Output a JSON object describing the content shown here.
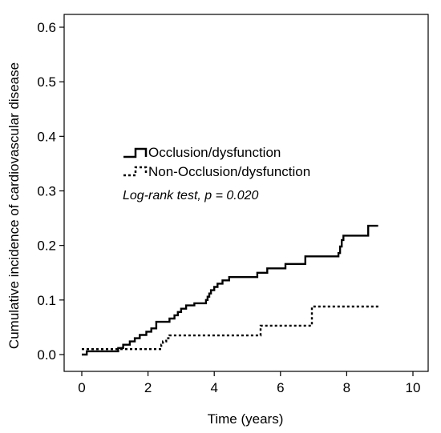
{
  "chart_data": {
    "type": "line",
    "step": true,
    "title": "",
    "xlabel": "Time (years)",
    "ylabel": "Cumulative incidence of cardiovascular disease",
    "xlim": [
      0,
      10
    ],
    "ylim": [
      0,
      0.6
    ],
    "xticks": [
      0,
      2,
      4,
      6,
      8,
      10
    ],
    "yticks": [
      0.0,
      0.1,
      0.2,
      0.3,
      0.4,
      0.5,
      0.6
    ],
    "xtick_labels": [
      "0",
      "2",
      "4",
      "6",
      "8",
      "10"
    ],
    "ytick_labels": [
      "0.0",
      "0.1",
      "0.2",
      "0.3",
      "0.4",
      "0.5",
      "0.6"
    ],
    "grid": false,
    "legend_position": "middle-left",
    "annotation": "Log-rank test, p = 0.020",
    "series": [
      {
        "name": "Occlusion/dysfunction",
        "style": "solid",
        "color": "#000000",
        "points": [
          [
            0.0,
            0.0
          ],
          [
            0.15,
            0.006
          ],
          [
            1.1,
            0.012
          ],
          [
            1.25,
            0.018
          ],
          [
            1.45,
            0.024
          ],
          [
            1.6,
            0.03
          ],
          [
            1.75,
            0.036
          ],
          [
            1.95,
            0.042
          ],
          [
            2.1,
            0.048
          ],
          [
            2.25,
            0.06
          ],
          [
            2.65,
            0.066
          ],
          [
            2.8,
            0.072
          ],
          [
            2.9,
            0.078
          ],
          [
            3.0,
            0.084
          ],
          [
            3.15,
            0.09
          ],
          [
            3.4,
            0.094
          ],
          [
            3.75,
            0.1
          ],
          [
            3.8,
            0.106
          ],
          [
            3.85,
            0.112
          ],
          [
            3.9,
            0.118
          ],
          [
            4.0,
            0.124
          ],
          [
            4.1,
            0.13
          ],
          [
            4.25,
            0.136
          ],
          [
            4.45,
            0.142
          ],
          [
            5.3,
            0.15
          ],
          [
            5.6,
            0.158
          ],
          [
            6.15,
            0.166
          ],
          [
            6.75,
            0.18
          ],
          [
            7.75,
            0.186
          ],
          [
            7.8,
            0.198
          ],
          [
            7.85,
            0.21
          ],
          [
            7.9,
            0.218
          ],
          [
            8.65,
            0.236
          ],
          [
            8.95,
            0.236
          ]
        ]
      },
      {
        "name": "Non-Occlusion/dysfunction",
        "style": "dotted",
        "color": "#000000",
        "points": [
          [
            0.0,
            0.01
          ],
          [
            2.4,
            0.018
          ],
          [
            2.45,
            0.024
          ],
          [
            2.55,
            0.03
          ],
          [
            2.65,
            0.035
          ],
          [
            5.4,
            0.053
          ],
          [
            6.95,
            0.088
          ],
          [
            9.0,
            0.088
          ]
        ]
      }
    ]
  }
}
